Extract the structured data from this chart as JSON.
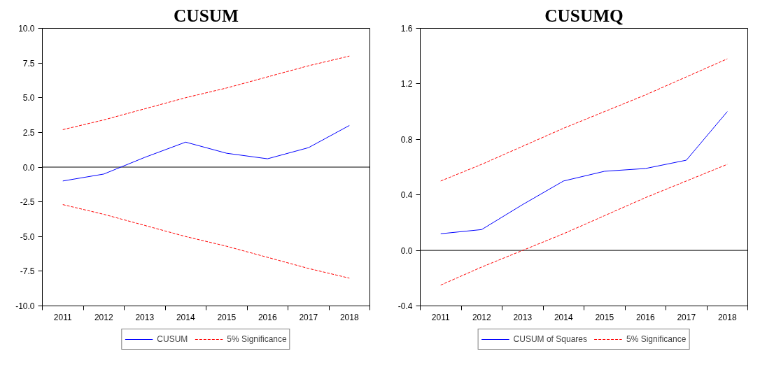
{
  "chart_data": [
    {
      "type": "line",
      "title": "CUSUM",
      "categories": [
        "2011",
        "2012",
        "2013",
        "2014",
        "2015",
        "2016",
        "2017",
        "2018"
      ],
      "series": [
        {
          "name": "CUSUM",
          "color": "#0000ff",
          "line_style": "solid",
          "values": [
            -1.0,
            -0.5,
            0.7,
            1.8,
            1.0,
            0.6,
            1.4,
            3.0
          ]
        },
        {
          "name": "5% Significance",
          "color": "#ff0000",
          "line_style": "dashed",
          "values": [
            2.7,
            3.4,
            4.2,
            5.0,
            5.7,
            6.5,
            7.3,
            8.0
          ]
        },
        {
          "name": "5% Significance",
          "color": "#ff0000",
          "line_style": "dashed",
          "values": [
            -2.7,
            -3.4,
            -4.2,
            -5.0,
            -5.7,
            -6.5,
            -7.3,
            -8.0
          ]
        }
      ],
      "ylim": [
        -10,
        10
      ],
      "yticks": [
        {
          "value": -10,
          "label": "-10.0"
        },
        {
          "value": -7.5,
          "label": "-7.5"
        },
        {
          "value": -5,
          "label": "-5.0"
        },
        {
          "value": -2.5,
          "label": "-2.5"
        },
        {
          "value": 0,
          "label": "0.0"
        },
        {
          "value": 2.5,
          "label": "2.5"
        },
        {
          "value": 5,
          "label": "5.0"
        },
        {
          "value": 7.5,
          "label": "7.5"
        },
        {
          "value": 10,
          "label": "10.0"
        }
      ],
      "ref_lines": [
        {
          "axis": "y",
          "value": 0,
          "color": "#000000"
        }
      ],
      "grid": false,
      "legend": "bottom",
      "marker": "none"
    },
    {
      "type": "line",
      "title": "CUSUMQ",
      "categories": [
        "2011",
        "2012",
        "2013",
        "2014",
        "2015",
        "2016",
        "2017",
        "2018"
      ],
      "series": [
        {
          "name": "CUSUM of Squares",
          "color": "#0000ff",
          "line_style": "solid",
          "values": [
            0.12,
            0.15,
            0.33,
            0.5,
            0.57,
            0.59,
            0.65,
            1.0
          ]
        },
        {
          "name": "5% Significance",
          "color": "#ff0000",
          "line_style": "dashed",
          "values": [
            0.5,
            0.62,
            0.75,
            0.88,
            1.0,
            1.12,
            1.25,
            1.38
          ]
        },
        {
          "name": "5% Significance",
          "color": "#ff0000",
          "line_style": "dashed",
          "values": [
            -0.25,
            -0.12,
            0.0,
            0.12,
            0.25,
            0.38,
            0.5,
            0.62
          ]
        }
      ],
      "ylim": [
        -0.4,
        1.6
      ],
      "yticks": [
        {
          "value": -0.4,
          "label": "-0.4"
        },
        {
          "value": 0,
          "label": "0.0"
        },
        {
          "value": 0.4,
          "label": "0.4"
        },
        {
          "value": 0.8,
          "label": "0.8"
        },
        {
          "value": 1.2,
          "label": "1.2"
        },
        {
          "value": 1.6,
          "label": "1.6"
        }
      ],
      "ref_lines": [
        {
          "axis": "y",
          "value": 0,
          "color": "#000000"
        }
      ],
      "grid": false,
      "legend": "bottom",
      "marker": "none"
    }
  ]
}
